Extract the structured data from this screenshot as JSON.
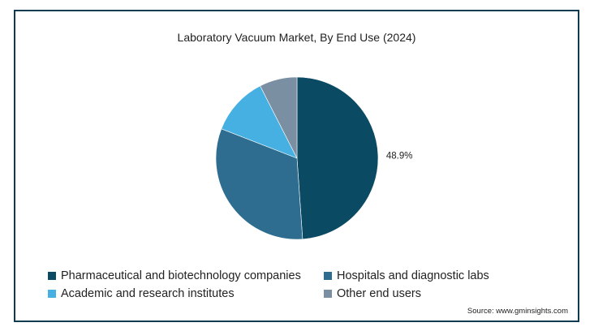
{
  "chart_data": {
    "type": "pie",
    "title": "Laboratory Vacuum Market, By End Use (2024)",
    "source": "Source: www.gminsights.com",
    "legend_position": "bottom",
    "series": [
      {
        "name": "Pharmaceutical and biotechnology companies",
        "value": 48.9,
        "color": "#0b4a63",
        "label": "48.9%"
      },
      {
        "name": "Hospitals and diagnostic labs",
        "value": 32.0,
        "color": "#2e6d90",
        "label": ""
      },
      {
        "name": "Academic and research institutes",
        "value": 11.6,
        "color": "#46b0e2",
        "label": ""
      },
      {
        "name": "Other end users",
        "value": 7.5,
        "color": "#7a8fa2",
        "label": ""
      }
    ]
  }
}
